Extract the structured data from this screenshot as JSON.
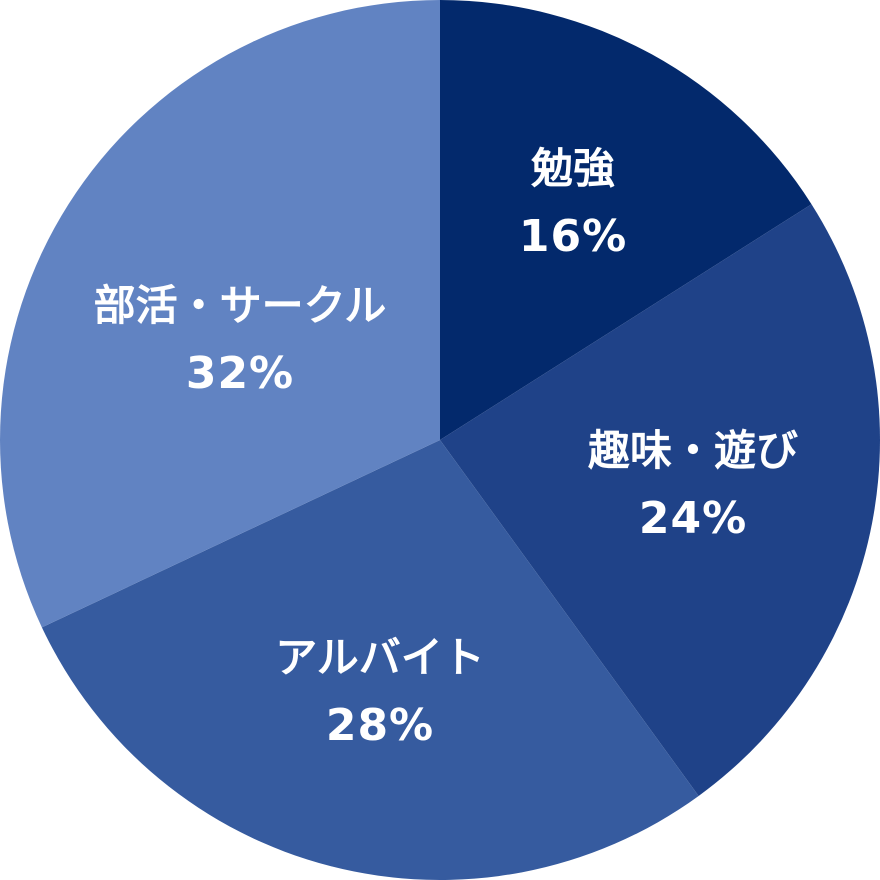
{
  "chart_data": {
    "type": "pie",
    "categories": [
      "勉強",
      "趣味・遊び",
      "アルバイト",
      "部活・サークル"
    ],
    "values": [
      16,
      24,
      28,
      32
    ],
    "value_labels": [
      "16%",
      "24%",
      "28%",
      "32%"
    ],
    "colors": [
      "#03296c",
      "#1f4288",
      "#365b9f",
      "#6183c2"
    ],
    "start_angle_deg": 0,
    "direction": "clockwise"
  }
}
